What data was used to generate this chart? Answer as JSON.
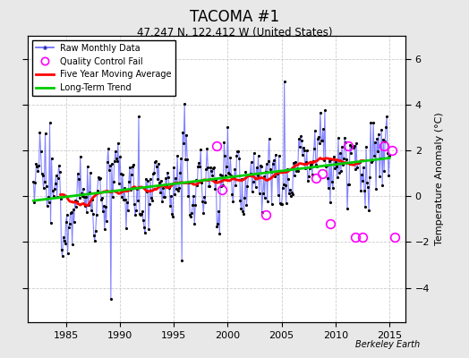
{
  "title": "TACOMA #1",
  "subtitle": "47.247 N, 122.412 W (United States)",
  "ylabel": "Temperature Anomaly (°C)",
  "ylim": [
    -5.5,
    7.0
  ],
  "xlim": [
    1981.5,
    2016.5
  ],
  "xticks": [
    1985,
    1990,
    1995,
    2000,
    2005,
    2010,
    2015
  ],
  "yticks": [
    -4,
    -2,
    0,
    2,
    4,
    6
  ],
  "background_color": "#e8e8e8",
  "plot_bg_color": "#ffffff",
  "grid_color": "#cccccc",
  "watermark": "Berkeley Earth",
  "line_color": "#6666ff",
  "dot_color": "#000000",
  "qc_color": "#ff00ff",
  "ma_color": "#ff0000",
  "trend_color": "#00cc00",
  "seed": 12345
}
